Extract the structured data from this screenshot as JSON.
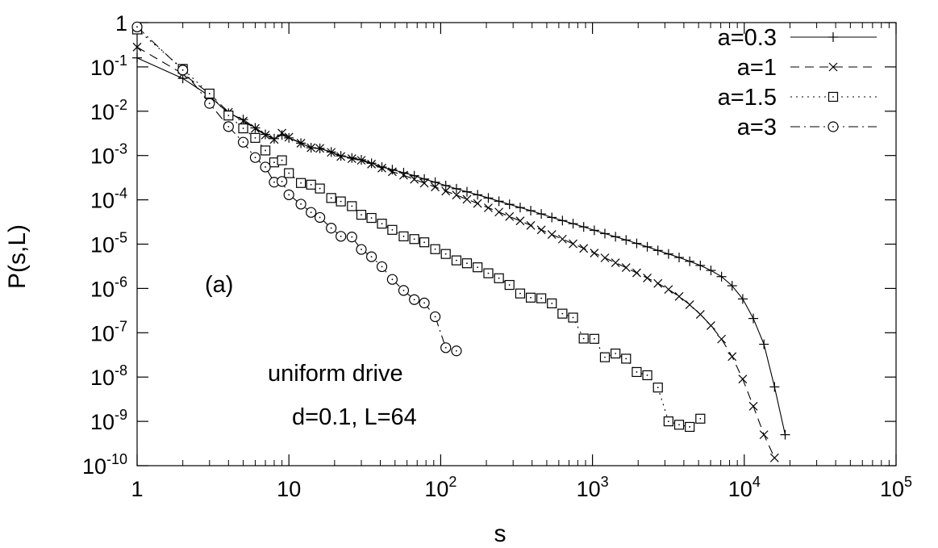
{
  "chart_data": {
    "type": "scatter",
    "xlabel": "s",
    "ylabel": "P(s,L)",
    "xscale": "log",
    "yscale": "log",
    "xlim": [
      1,
      100000
    ],
    "ylim": [
      1e-10,
      1
    ],
    "grid": false,
    "legend_position": "top-right",
    "x_ticks": [
      {
        "base": "1",
        "exp": ""
      },
      {
        "base": "10",
        "exp": ""
      },
      {
        "base": "10",
        "exp": "2"
      },
      {
        "base": "10",
        "exp": "3"
      },
      {
        "base": "10",
        "exp": "4"
      },
      {
        "base": "10",
        "exp": "5"
      }
    ],
    "y_ticks": [
      {
        "base": "1",
        "exp": ""
      },
      {
        "base": "10",
        "exp": "-1"
      },
      {
        "base": "10",
        "exp": "-2"
      },
      {
        "base": "10",
        "exp": "-3"
      },
      {
        "base": "10",
        "exp": "-4"
      },
      {
        "base": "10",
        "exp": "-5"
      },
      {
        "base": "10",
        "exp": "-6"
      },
      {
        "base": "10",
        "exp": "-7"
      },
      {
        "base": "10",
        "exp": "-8"
      },
      {
        "base": "10",
        "exp": "-9"
      },
      {
        "base": "10",
        "exp": "-10"
      }
    ],
    "annotations": {
      "panel": "(a)",
      "drive": "uniform drive",
      "params": "d=0.1, L=64"
    },
    "series": [
      {
        "name": "a=0.3",
        "marker": "plus",
        "dash": "",
        "x": [
          1,
          2,
          3,
          4,
          5,
          6,
          7,
          8,
          9,
          10,
          12,
          14,
          16,
          19,
          22,
          26,
          30,
          35,
          41,
          48,
          57,
          67,
          78,
          92,
          108,
          127,
          149,
          175,
          206,
          242,
          284,
          334,
          392,
          460,
          540,
          634,
          745,
          875,
          1028,
          1207,
          1418,
          1665,
          1956,
          2297,
          2698,
          3169,
          3722,
          4371,
          5134,
          6030,
          7082,
          8318,
          9770,
          11474,
          13477,
          15828,
          18590
        ],
        "y": [
          0.16,
          0.055,
          0.022,
          0.009,
          0.0065,
          0.0042,
          0.003,
          0.0024,
          0.0029,
          0.0025,
          0.0019,
          0.0015,
          0.00145,
          0.0012,
          0.00098,
          0.00088,
          0.0008,
          0.00067,
          0.00055,
          0.00048,
          0.00041,
          0.00035,
          0.000295,
          0.00025,
          0.00021,
          0.000178,
          0.000152,
          0.00013,
          0.00011,
          9.3e-05,
          7.9e-05,
          6.7e-05,
          5.7e-05,
          4.8e-05,
          4e-05,
          3.4e-05,
          2.9e-05,
          2.45e-05,
          2.05e-05,
          1.73e-05,
          1.47e-05,
          1.24e-05,
          1.04e-05,
          8.7e-06,
          7.2e-06,
          6e-06,
          5e-06,
          4.1e-06,
          3.3e-06,
          2.55e-06,
          1.85e-06,
          1.15e-06,
          5.8e-07,
          2.1e-07,
          5.5e-08,
          6e-09,
          5e-10
        ]
      },
      {
        "name": "a=1",
        "marker": "cross",
        "dash": "11,7",
        "x": [
          1,
          2,
          3,
          4,
          5,
          6,
          7,
          8,
          9,
          10,
          12,
          14,
          16,
          19,
          22,
          26,
          30,
          35,
          41,
          48,
          57,
          67,
          78,
          92,
          108,
          127,
          149,
          175,
          206,
          242,
          284,
          334,
          392,
          460,
          540,
          634,
          745,
          875,
          1028,
          1207,
          1418,
          1665,
          1956,
          2297,
          2698,
          3169,
          3722,
          4371,
          5134,
          6030,
          7082,
          8318,
          9770,
          11474,
          13477,
          15828
        ],
        "y": [
          0.28,
          0.07,
          0.025,
          0.0095,
          0.006,
          0.0041,
          0.0029,
          0.0023,
          0.0032,
          0.0026,
          0.0019,
          0.0015,
          0.00145,
          0.00118,
          0.00095,
          0.00085,
          0.00078,
          0.00064,
          0.00052,
          0.00043,
          0.00036,
          0.00029,
          0.000238,
          0.000195,
          0.000157,
          0.000128,
          0.000103,
          8.3e-05,
          6.6e-05,
          5.3e-05,
          4.2e-05,
          3.35e-05,
          2.65e-05,
          2.1e-05,
          1.65e-05,
          1.3e-05,
          1.02e-05,
          8e-06,
          6.3e-06,
          4.9e-06,
          3.8e-06,
          2.95e-06,
          2.25e-06,
          1.72e-06,
          1.3e-06,
          9.5e-07,
          6.6e-07,
          4.3e-07,
          2.6e-07,
          1.45e-07,
          7.2e-08,
          2.9e-08,
          9e-09,
          2.2e-09,
          5e-10,
          1.5e-10
        ]
      },
      {
        "name": "a=1.5",
        "marker": "square",
        "dash": "2,5",
        "x": [
          1,
          2,
          3,
          4,
          5,
          6,
          7,
          8,
          9,
          10,
          12,
          14,
          16,
          19,
          22,
          26,
          30,
          35,
          41,
          48,
          57,
          67,
          78,
          92,
          108,
          127,
          149,
          175,
          206,
          242,
          284,
          334,
          392,
          460,
          540,
          634,
          745,
          875,
          1028,
          1207,
          1418,
          1665,
          1956,
          2297,
          2698,
          3169,
          3722,
          4371,
          5134
        ],
        "y": [
          0.7,
          0.09,
          0.025,
          0.008,
          0.0041,
          0.0025,
          0.0013,
          0.0007,
          0.00078,
          0.0004,
          0.00024,
          0.00022,
          0.00018,
          0.00011,
          9.2e-05,
          7.2e-05,
          4.6e-05,
          3.9e-05,
          2.9e-05,
          2.1e-05,
          1.5e-05,
          1.3e-05,
          1.1e-05,
          7.7e-06,
          6e-06,
          4.3e-06,
          3.7e-06,
          3e-06,
          2.2e-06,
          1.7e-06,
          1.2e-06,
          7.7e-07,
          6.2e-07,
          6e-07,
          4.6e-07,
          2.7e-07,
          2.2e-07,
          7.4e-08,
          7.3e-08,
          2.8e-08,
          3.4e-08,
          2.6e-08,
          1.3e-08,
          1.1e-08,
          5.8e-09,
          1e-09,
          8.4e-10,
          7.5e-10,
          1.15e-09
        ]
      },
      {
        "name": "a=3",
        "marker": "circle",
        "dash": "12,5,2,5",
        "x": [
          1,
          2,
          3,
          4,
          5,
          6,
          7,
          8,
          9,
          10,
          12,
          14,
          16,
          19,
          22,
          26,
          30,
          35,
          41,
          48,
          57,
          67,
          78,
          92,
          108,
          127
        ],
        "y": [
          0.8,
          0.085,
          0.015,
          0.0045,
          0.002,
          0.0009,
          0.00055,
          0.00025,
          0.00026,
          0.00013,
          8e-05,
          5.2e-05,
          4e-05,
          2.3e-05,
          1.5e-05,
          1.45e-05,
          7.6e-06,
          5.2e-06,
          3.1e-06,
          1.6e-06,
          9e-07,
          5.6e-07,
          4.7e-07,
          2.3e-07,
          4.6e-08,
          3.9e-08
        ]
      }
    ]
  }
}
